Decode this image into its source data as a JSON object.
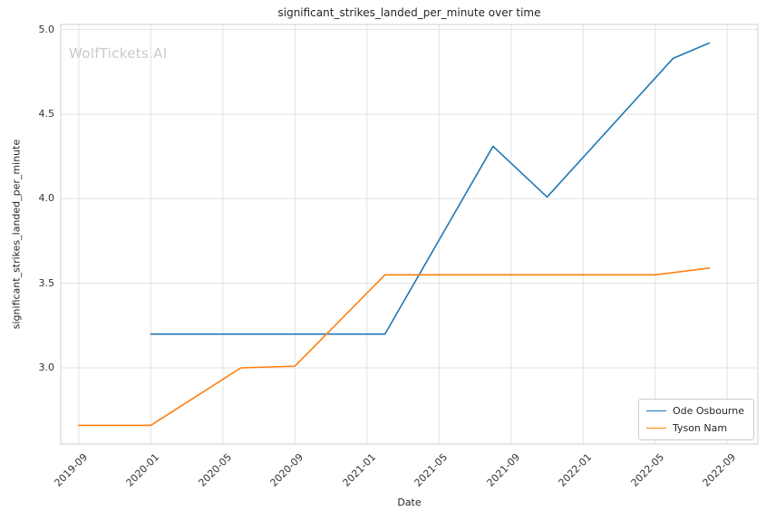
{
  "chart": {
    "title": "significant_strikes_landed_per_minute over time",
    "xlabel": "Date",
    "ylabel": "significant_strikes_landed_per_minute",
    "watermark": "WolfTickets.AI"
  },
  "chart_data": {
    "type": "line",
    "title": "significant_strikes_landed_per_minute over time",
    "xlabel": "Date",
    "ylabel": "significant_strikes_landed_per_minute",
    "x_ticks": [
      "2019-09",
      "2020-01",
      "2020-05",
      "2020-09",
      "2021-01",
      "2021-05",
      "2021-09",
      "2022-01",
      "2022-05",
      "2022-09"
    ],
    "y_ticks": [
      3.0,
      3.5,
      4.0,
      4.5,
      5.0
    ],
    "ylim": [
      2.55,
      5.03
    ],
    "xlim_months_from_first_tick": [
      -1.0,
      37.7
    ],
    "grid": true,
    "legend_position": "lower right",
    "grid_color": "#e2e2e2",
    "spine_color": "#cfcfcf",
    "series": [
      {
        "name": "Ode Osbourne",
        "color": "#1f77b4",
        "points": [
          [
            "2020-01",
            3.2
          ],
          [
            "2021-02",
            3.2
          ],
          [
            "2021-08",
            4.31
          ],
          [
            "2021-11",
            4.01
          ],
          [
            "2022-06",
            4.83
          ],
          [
            "2022-08",
            4.92
          ]
        ]
      },
      {
        "name": "Tyson Nam",
        "color": "#ff7f0e",
        "points": [
          [
            "2019-09",
            2.66
          ],
          [
            "2020-01",
            2.66
          ],
          [
            "2020-06",
            3.0
          ],
          [
            "2020-09",
            3.01
          ],
          [
            "2021-02",
            3.55
          ],
          [
            "2022-05",
            3.55
          ],
          [
            "2022-08",
            3.59
          ]
        ]
      }
    ]
  }
}
